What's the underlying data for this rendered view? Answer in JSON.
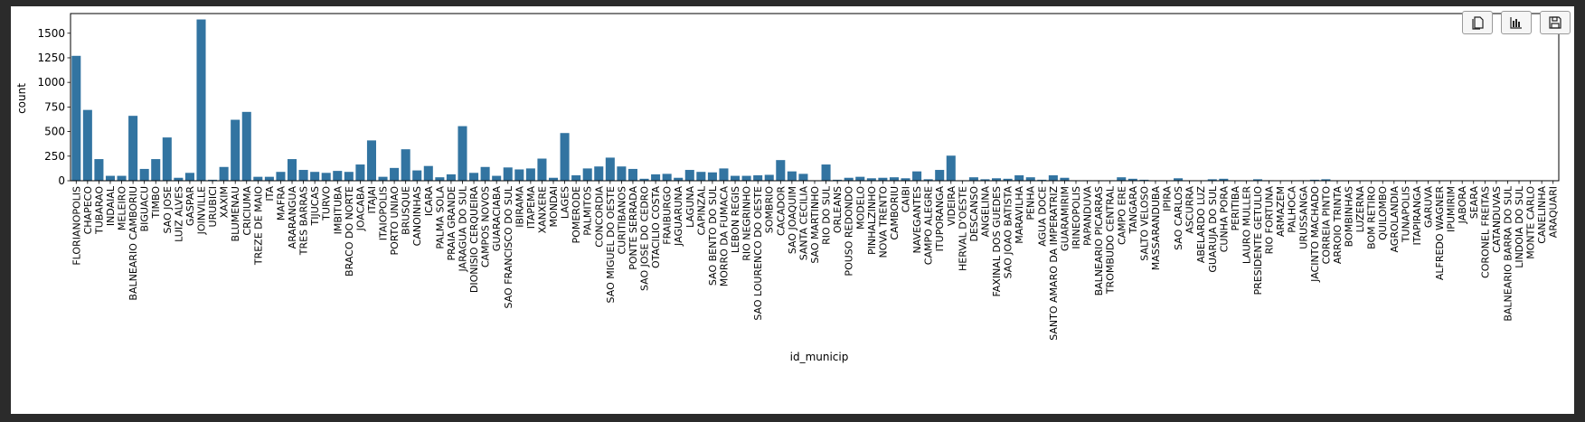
{
  "toolbar": {
    "buttons": [
      {
        "name": "copy-icon"
      },
      {
        "name": "bar-chart-icon"
      },
      {
        "name": "save-icon"
      }
    ]
  },
  "chart_data": {
    "type": "bar",
    "title": "",
    "xlabel": "id_municip",
    "ylabel": "count",
    "ylim": [
      0,
      1700
    ],
    "yticks": [
      0,
      250,
      500,
      750,
      1000,
      1250,
      1500
    ],
    "grid": false,
    "bar_color": "#3274a1",
    "categories": [
      "FLORIANOPOLIS",
      "CHAPECO",
      "TUBARAO",
      "INDAIAL",
      "MELEIRO",
      "BALNEARIO CAMBORIU",
      "BIGUACU",
      "TIMBO",
      "SAO JOSE",
      "LUIZ ALVES",
      "GASPAR",
      "JOINVILLE",
      "URUBICI",
      "XAXIM",
      "BLUMENAU",
      "CRICIUMA",
      "TREZE DE MAIO",
      "ITA",
      "MAFRA",
      "ARARANGUA",
      "TRES BARRAS",
      "TIJUCAS",
      "TURVO",
      "IMBITUBA",
      "BRACO DO NORTE",
      "JOACABA",
      "ITAJAI",
      "ITAIOPOLIS",
      "PORTO UNIAO",
      "BRUSQUE",
      "CANOINHAS",
      "ICARA",
      "PALMA SOLA",
      "PRAIA GRANDE",
      "JARAGUA DO SUL",
      "DIONISIO CERQUEIRA",
      "CAMPOS NOVOS",
      "GUARACIABA",
      "SAO FRANCISCO DO SUL",
      "IBIRAMA",
      "ITAPEMA",
      "XANXERE",
      "MONDAI",
      "LAGES",
      "POMERODE",
      "PALMITOS",
      "CONCORDIA",
      "SAO MIGUEL DO OESTE",
      "CURITIBANOS",
      "PONTE SERRADA",
      "SAO JOSE DO CEDRO",
      "OTACILIO COSTA",
      "FRAIBURGO",
      "JAGUARUNA",
      "LAGUNA",
      "CAPINZAL",
      "SAO BENTO DO SUL",
      "MORRO DA FUMACA",
      "LEBON REGIS",
      "RIO NEGRINHO",
      "SAO LOURENCO DO OESTE",
      "SOMBRIO",
      "CACADOR",
      "SAO JOAQUIM",
      "SANTA CECILIA",
      "SAO MARTINHO",
      "RIO DO SUL",
      "ORLEANS",
      "POUSO REDONDO",
      "MODELO",
      "PINHALZINHO",
      "NOVA TRENTO",
      "CAMBORIU",
      "CAIBI",
      "NAVEGANTES",
      "CAMPO ALEGRE",
      "ITUPORANGA",
      "VIDEIRA",
      "HERVAL D'OESTE",
      "DESCANSO",
      "ANGELINA",
      "FAXINAL DOS GUEDES",
      "SAO JOAO BATISTA",
      "MARAVILHA",
      "PENHA",
      "AGUA DOCE",
      "SANTO AMARO DA IMPERATRIZ",
      "GUARAMIRIM",
      "IRINEOPOLIS",
      "PAPANDUVA",
      "BALNEARIO PICARRAS",
      "TROMBUDO CENTRAL",
      "CAMPO ERE",
      "TANGARA",
      "SALTO VELOSO",
      "MASSARANDUBA",
      "IPIRA",
      "SAO CARLOS",
      "ASCURRA",
      "ABELARDO LUZ",
      "GUARUJA DO SUL",
      "CUNHA PORA",
      "PERITIBA",
      "LAURO MULLER",
      "PRESIDENTE GETULIO",
      "RIO FORTUNA",
      "ARMAZEM",
      "PALHOCA",
      "URUSSANGA",
      "JACINTO MACHADO",
      "CORREIA PINTO",
      "ARROIO TRINTA",
      "BOMBINHAS",
      "LUZERNA",
      "BOM RETIRO",
      "QUILOMBO",
      "AGROLANDIA",
      "TUNAPOLIS",
      "ITAPIRANGA",
      "GARUVA",
      "ALFREDO WAGNER",
      "IPUMIRIM",
      "JABORA",
      "SEARA",
      "CORONEL FREITAS",
      "CATANDUVAS",
      "BALNEARIO BARRA DO SUL",
      "LINDOIA DO SUL",
      "MONTE CARLO",
      "CANELINHA",
      "ARAQUARI"
    ],
    "values": [
      1270,
      720,
      220,
      50,
      50,
      660,
      120,
      220,
      440,
      30,
      80,
      1640,
      10,
      140,
      620,
      700,
      40,
      40,
      90,
      220,
      110,
      90,
      80,
      100,
      90,
      165,
      410,
      40,
      130,
      320,
      105,
      150,
      35,
      65,
      555,
      80,
      140,
      50,
      135,
      115,
      125,
      225,
      30,
      485,
      55,
      125,
      145,
      235,
      145,
      120,
      20,
      65,
      70,
      30,
      110,
      90,
      85,
      125,
      50,
      50,
      55,
      60,
      210,
      95,
      70,
      5,
      165,
      10,
      30,
      40,
      25,
      30,
      35,
      25,
      95,
      15,
      110,
      255,
      5,
      35,
      15,
      25,
      20,
      55,
      35,
      10,
      55,
      30,
      5,
      5,
      5,
      5,
      35,
      20,
      10,
      3,
      3,
      25,
      3,
      3,
      15,
      20,
      3,
      3,
      15,
      5,
      3,
      3,
      5,
      10,
      15,
      3,
      3,
      3,
      3,
      3,
      3,
      3,
      3,
      3,
      3,
      3,
      3,
      3,
      3,
      3,
      3,
      3,
      3,
      3,
      3
    ]
  }
}
